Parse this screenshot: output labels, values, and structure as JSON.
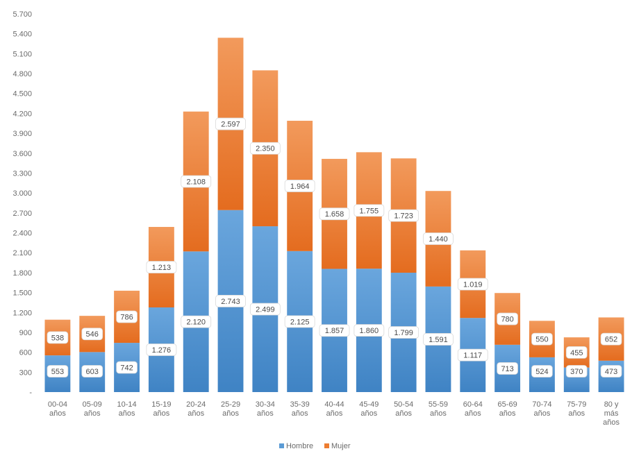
{
  "chart_data": {
    "type": "bar",
    "stacked": true,
    "title": "",
    "xlabel": "",
    "ylabel": "",
    "ylim": [
      0,
      5700
    ],
    "yticks": [
      300,
      600,
      900,
      1200,
      1500,
      1800,
      2100,
      2400,
      2700,
      3000,
      3300,
      3600,
      3900,
      4200,
      4500,
      4800,
      5100,
      5400,
      5700
    ],
    "ytick_labels": [
      "300",
      "600",
      "900",
      "1.200",
      "1.500",
      "1.800",
      "2.100",
      "2.400",
      "2.700",
      "3.000",
      "3.300",
      "3.600",
      "3.900",
      "4.200",
      "4.500",
      "4.800",
      "5.100",
      "5.400",
      "5.700"
    ],
    "zero_label": "-",
    "categories": [
      [
        "00-04",
        "años"
      ],
      [
        "05-09",
        "años"
      ],
      [
        "10-14",
        "años"
      ],
      [
        "15-19",
        "años"
      ],
      [
        "20-24",
        "años"
      ],
      [
        "25-29",
        "años"
      ],
      [
        "30-34",
        "años"
      ],
      [
        "35-39",
        "años"
      ],
      [
        "40-44",
        "años"
      ],
      [
        "45-49",
        "años"
      ],
      [
        "50-54",
        "años"
      ],
      [
        "55-59",
        "años"
      ],
      [
        "60-64",
        "años"
      ],
      [
        "65-69",
        "años"
      ],
      [
        "70-74",
        "años"
      ],
      [
        "75-79",
        "años"
      ],
      [
        "80 y",
        "más",
        "años"
      ]
    ],
    "series": [
      {
        "name": "Hombre",
        "color": "#5b9bd5",
        "values": [
          553,
          603,
          742,
          1276,
          2120,
          2743,
          2499,
          2125,
          1857,
          1860,
          1799,
          1591,
          1117,
          713,
          524,
          370,
          473
        ],
        "labels": [
          "553",
          "603",
          "742",
          "1.276",
          "2.120",
          "2.743",
          "2.499",
          "2.125",
          "1.857",
          "1.860",
          "1.799",
          "1.591",
          "1.117",
          "713",
          "524",
          "370",
          "473"
        ]
      },
      {
        "name": "Mujer",
        "color": "#ed7d31",
        "values": [
          538,
          546,
          786,
          1213,
          2108,
          2597,
          2350,
          1964,
          1658,
          1755,
          1723,
          1440,
          1019,
          780,
          550,
          455,
          652
        ],
        "labels": [
          "538",
          "546",
          "786",
          "1.213",
          "2.108",
          "2.597",
          "2.350",
          "1.964",
          "1.658",
          "1.755",
          "1.723",
          "1.440",
          "1.019",
          "780",
          "550",
          "455",
          "652"
        ]
      }
    ],
    "grid": false,
    "legend": {
      "position": "bottom",
      "entries": [
        "Hombre",
        "Mujer"
      ]
    }
  }
}
